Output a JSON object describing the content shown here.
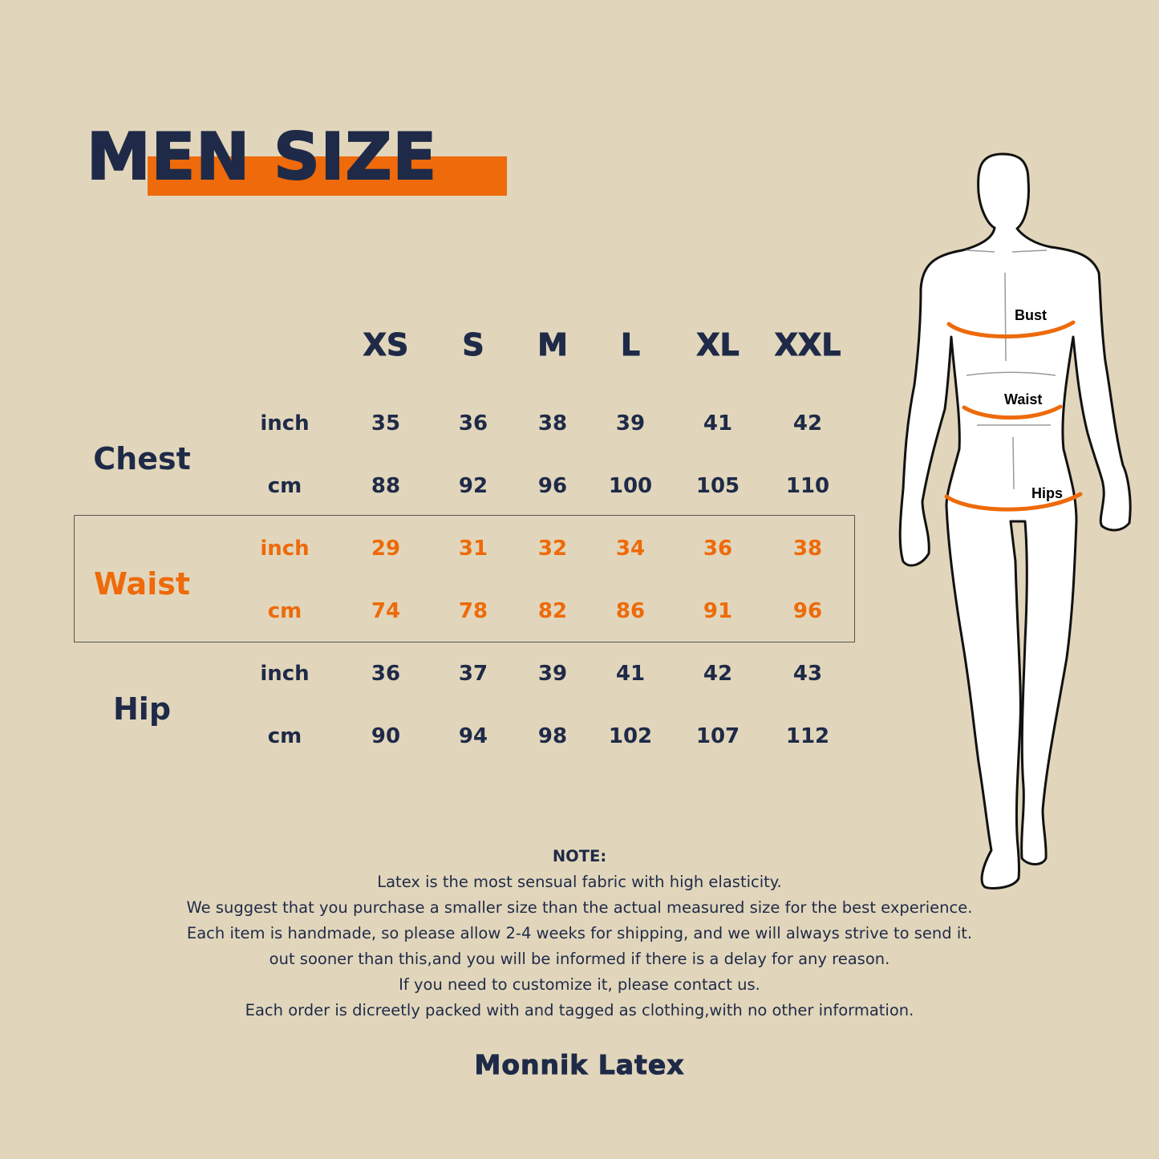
{
  "title": "MEN SIZE",
  "sizes": [
    "XS",
    "S",
    "M",
    "L",
    "XL",
    "XXL"
  ],
  "rows": [
    {
      "category": "Chest",
      "inch_label": "inch",
      "cm_label": "cm",
      "inch": [
        "35",
        "36",
        "38",
        "39",
        "41",
        "42"
      ],
      "cm": [
        "88",
        "92",
        "96",
        "100",
        "105",
        "110"
      ]
    },
    {
      "category": "Waist",
      "inch_label": "inch",
      "cm_label": "cm",
      "inch": [
        "29",
        "31",
        "32",
        "34",
        "36",
        "38"
      ],
      "cm": [
        "74",
        "78",
        "82",
        "86",
        "91",
        "96"
      ]
    },
    {
      "category": "Hip",
      "inch_label": "inch",
      "cm_label": "cm",
      "inch": [
        "36",
        "37",
        "39",
        "41",
        "42",
        "43"
      ],
      "cm": [
        "90",
        "94",
        "98",
        "102",
        "107",
        "112"
      ]
    }
  ],
  "figure_labels": {
    "bust": "Bust",
    "waist": "Waist",
    "hips": "Hips"
  },
  "note": {
    "heading": "NOTE:",
    "lines": [
      "Latex is the most sensual fabric with high elasticity.",
      "We suggest that you purchase a smaller size than the actual measured size for the best experience.",
      "Each item is handmade, so please allow 2-4 weeks for shipping, and we will always strive to send it.",
      "out sooner than this,and you will be informed if there is a delay for any reason.",
      "If you need to customize it, please contact us.",
      "Each order is dicreetly packed with and tagged as clothing,with no other information."
    ]
  },
  "brand": "Monnik Latex",
  "colors": {
    "background": "#e1d6bb",
    "navy": "#1f2a48",
    "accent": "#ee6a0a"
  }
}
